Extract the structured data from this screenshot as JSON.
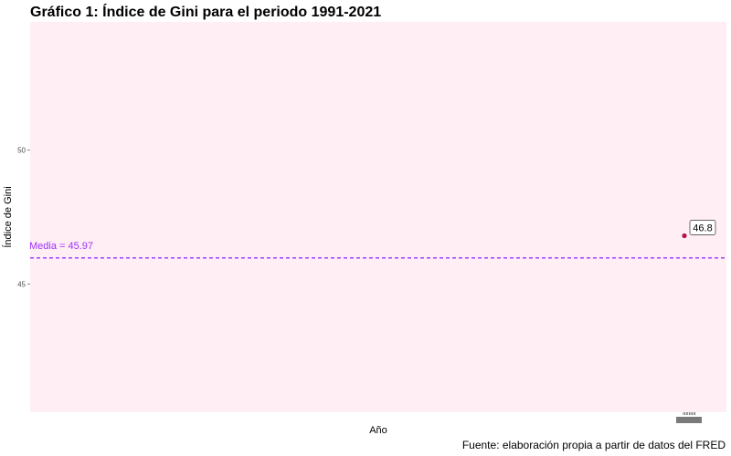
{
  "chart_data": {
    "type": "scatter",
    "title": "Gráfico 1: Índice de Gini para el periodo 1991-2021",
    "xlabel": "Año",
    "ylabel": "Índice de Gini",
    "caption": "Fuente: elaboración propia a partir de datos del FRED",
    "ylim": [
      40.2,
      54.8
    ],
    "yticks": [
      45,
      50
    ],
    "grid": false,
    "background": "#ffeef4",
    "points": [
      {
        "x": 2021,
        "y": 46.8,
        "label": "46.8",
        "color": "#b5134b"
      }
    ],
    "mean": {
      "value": 45.97,
      "label": "Media = 45.97",
      "color": "#9b30ff",
      "style": "dashed"
    }
  }
}
